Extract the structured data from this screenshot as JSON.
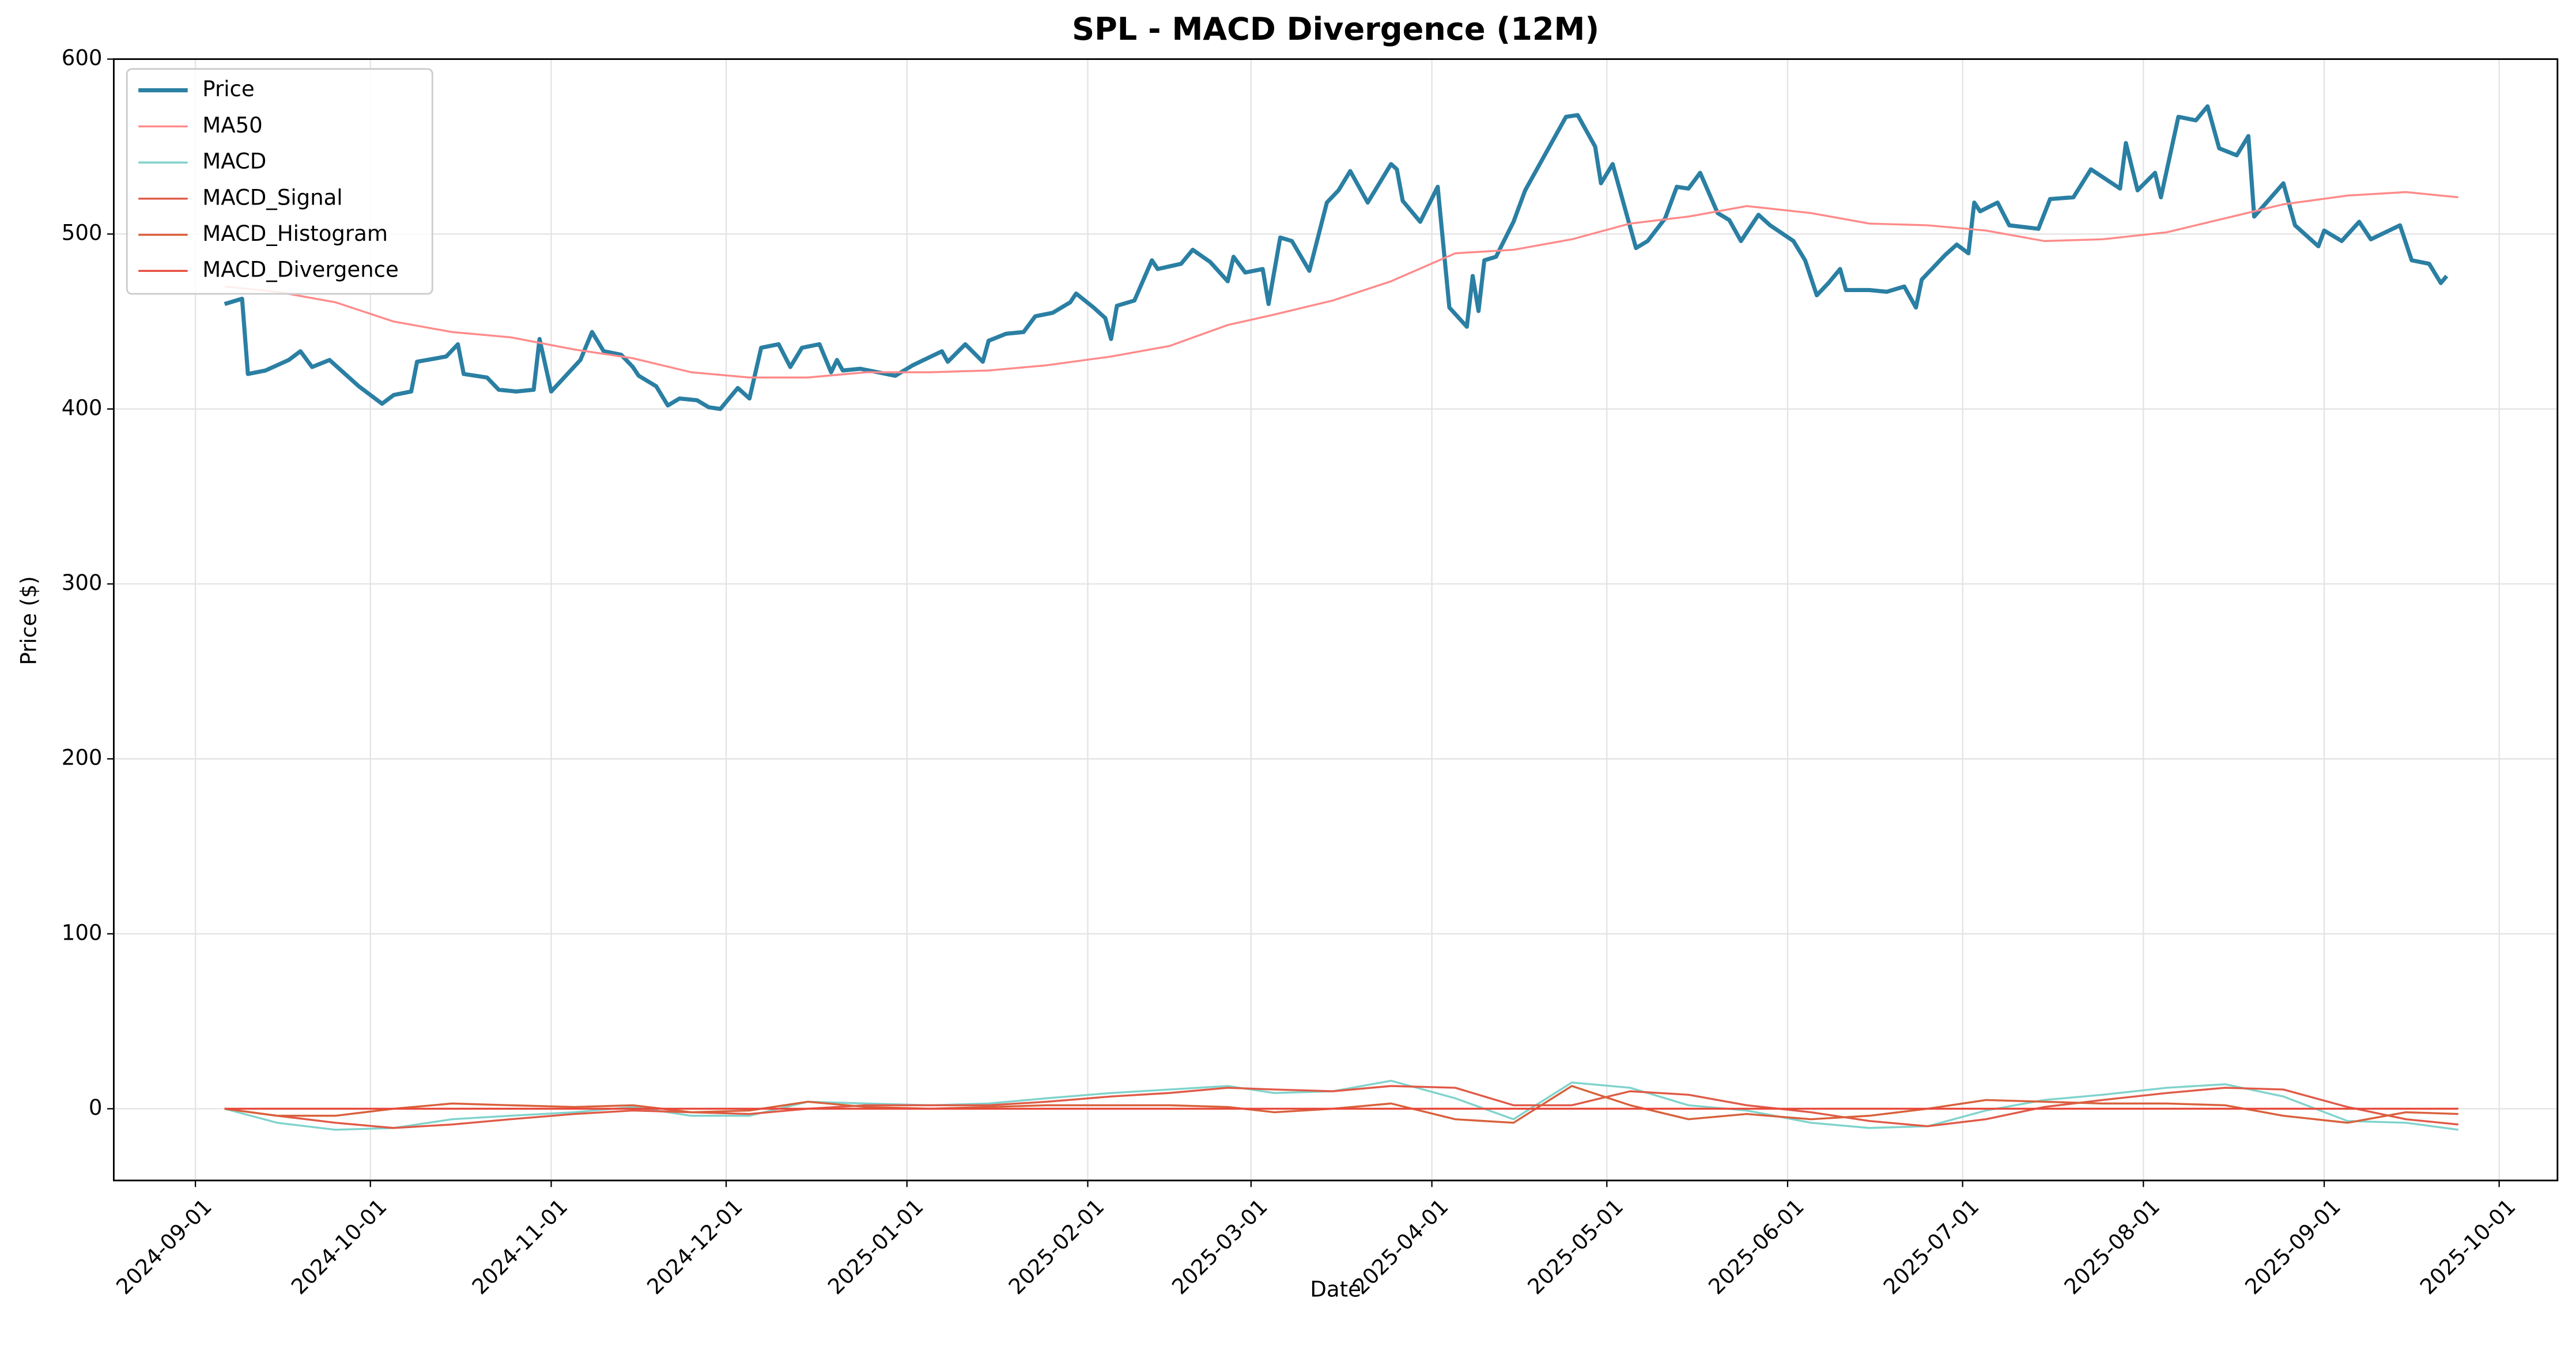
{
  "chart_data": {
    "type": "line",
    "title": "SPL - MACD Divergence (12M)",
    "x_label": "Date",
    "y_label": "Price ($)",
    "xlim": [
      "2024-08-18",
      "2025-10-11"
    ],
    "ylim": [
      -41,
      600
    ],
    "xticks": [
      "2024-09-01",
      "2024-10-01",
      "2024-11-01",
      "2024-12-01",
      "2025-01-01",
      "2025-02-01",
      "2025-03-01",
      "2025-04-01",
      "2025-05-01",
      "2025-06-01",
      "2025-07-01",
      "2025-08-01",
      "2025-09-01",
      "2025-10-01"
    ],
    "yticks": [
      0,
      100,
      200,
      300,
      400,
      500,
      600
    ],
    "grid": true,
    "legend": "upper left",
    "x": [
      "2024-09-06",
      "2024-09-15",
      "2024-09-25",
      "2024-10-05",
      "2024-10-15",
      "2024-10-25",
      "2024-11-05",
      "2024-11-15",
      "2024-11-25",
      "2024-12-05",
      "2024-12-15",
      "2024-12-25",
      "2025-01-05",
      "2025-01-15",
      "2025-01-25",
      "2025-02-05",
      "2025-02-15",
      "2025-02-25",
      "2025-03-05",
      "2025-03-15",
      "2025-03-25",
      "2025-04-05",
      "2025-04-15",
      "2025-04-25",
      "2025-05-05",
      "2025-05-15",
      "2025-05-25",
      "2025-06-05",
      "2025-06-15",
      "2025-06-25",
      "2025-07-05",
      "2025-07-15",
      "2025-07-25",
      "2025-08-05",
      "2025-08-15",
      "2025-08-25",
      "2025-09-05",
      "2025-09-15",
      "2025-09-24"
    ],
    "series": [
      {
        "name": "Price",
        "color": "#2a7fa3",
        "width": 2.5,
        "x": [
          "2024-09-06",
          "2024-09-09",
          "2024-09-10",
          "2024-09-13",
          "2024-09-17",
          "2024-09-19",
          "2024-09-21",
          "2024-09-24",
          "2024-09-26",
          "2024-09-29",
          "2024-10-03",
          "2024-10-05",
          "2024-10-08",
          "2024-10-09",
          "2024-10-14",
          "2024-10-16",
          "2024-10-17",
          "2024-10-21",
          "2024-10-23",
          "2024-10-26",
          "2024-10-29",
          "2024-10-30",
          "2024-11-01",
          "2024-11-06",
          "2024-11-08",
          "2024-11-10",
          "2024-11-13",
          "2024-11-15",
          "2024-11-16",
          "2024-11-19",
          "2024-11-21",
          "2024-11-23",
          "2024-11-26",
          "2024-11-28",
          "2024-11-30",
          "2024-12-03",
          "2024-12-05",
          "2024-12-07",
          "2024-12-10",
          "2024-12-12",
          "2024-12-14",
          "2024-12-17",
          "2024-12-19",
          "2024-12-20",
          "2024-12-21",
          "2024-12-24",
          "2024-12-30",
          "2025-01-02",
          "2025-01-07",
          "2025-01-08",
          "2025-01-11",
          "2025-01-14",
          "2025-01-15",
          "2025-01-18",
          "2025-01-21",
          "2025-01-23",
          "2025-01-26",
          "2025-01-29",
          "2025-01-30",
          "2025-02-02",
          "2025-02-04",
          "2025-02-05",
          "2025-02-06",
          "2025-02-09",
          "2025-02-12",
          "2025-02-13",
          "2025-02-17",
          "2025-02-19",
          "2025-02-22",
          "2025-02-25",
          "2025-02-26",
          "2025-02-28",
          "2025-03-03",
          "2025-03-04",
          "2025-03-06",
          "2025-03-08",
          "2025-03-11",
          "2025-03-14",
          "2025-03-16",
          "2025-03-18",
          "2025-03-21",
          "2025-03-23",
          "2025-03-25",
          "2025-03-26",
          "2025-03-27",
          "2025-03-30",
          "2025-04-02",
          "2025-04-04",
          "2025-04-07",
          "2025-04-08",
          "2025-04-09",
          "2025-04-10",
          "2025-04-12",
          "2025-04-15",
          "2025-04-17",
          "2025-04-21",
          "2025-04-24",
          "2025-04-26",
          "2025-04-29",
          "2025-04-30",
          "2025-05-02",
          "2025-05-06",
          "2025-05-08",
          "2025-05-11",
          "2025-05-13",
          "2025-05-15",
          "2025-05-17",
          "2025-05-20",
          "2025-05-22",
          "2025-05-24",
          "2025-05-27",
          "2025-05-29",
          "2025-06-02",
          "2025-06-04",
          "2025-06-06",
          "2025-06-08",
          "2025-06-10",
          "2025-06-11",
          "2025-06-15",
          "2025-06-18",
          "2025-06-21",
          "2025-06-23",
          "2025-06-24",
          "2025-06-28",
          "2025-06-30",
          "2025-07-02",
          "2025-07-03",
          "2025-07-04",
          "2025-07-07",
          "2025-07-09",
          "2025-07-14",
          "2025-07-16",
          "2025-07-20",
          "2025-07-23",
          "2025-07-28",
          "2025-07-29",
          "2025-07-31",
          "2025-08-03",
          "2025-08-04",
          "2025-08-07",
          "2025-08-10",
          "2025-08-12",
          "2025-08-14",
          "2025-08-17",
          "2025-08-19",
          "2025-08-20",
          "2025-08-25",
          "2025-08-27",
          "2025-08-31",
          "2025-09-01",
          "2025-09-04",
          "2025-09-07",
          "2025-09-09",
          "2025-09-14",
          "2025-09-16",
          "2025-09-19",
          "2025-09-21",
          "2025-09-22"
        ],
        "values": [
          460,
          463,
          420,
          422,
          428,
          433,
          424,
          428,
          422,
          413,
          403,
          408,
          410,
          427,
          430,
          437,
          420,
          418,
          411,
          410,
          411,
          440,
          410,
          428,
          444,
          433,
          431,
          424,
          419,
          413,
          402,
          406,
          405,
          401,
          400,
          412,
          406,
          435,
          437,
          424,
          435,
          437,
          421,
          428,
          422,
          423,
          419,
          425,
          433,
          427,
          437,
          427,
          439,
          443,
          444,
          453,
          455,
          461,
          466,
          458,
          452,
          440,
          459,
          462,
          485,
          480,
          483,
          491,
          484,
          473,
          487,
          478,
          480,
          460,
          498,
          496,
          479,
          518,
          525,
          536,
          518,
          529,
          540,
          537,
          519,
          507,
          527,
          458,
          447,
          476,
          456,
          485,
          487,
          507,
          525,
          549,
          567,
          568,
          550,
          529,
          540,
          492,
          496,
          509,
          527,
          526,
          535,
          512,
          508,
          496,
          511,
          505,
          496,
          485,
          465,
          472,
          480,
          468,
          468,
          467,
          470,
          458,
          474,
          488,
          494,
          489,
          518,
          513,
          518,
          505,
          503,
          520,
          521,
          537,
          526,
          552,
          525,
          535,
          521,
          567,
          565,
          573,
          549,
          545,
          556,
          510,
          529,
          505,
          493,
          502,
          496,
          507,
          497,
          505,
          485,
          483,
          472,
          476
        ]
      },
      {
        "name": "MA50",
        "color": "#ff8a8a",
        "width": 1.2,
        "values": [
          470,
          467,
          461,
          450,
          444,
          441,
          434,
          429,
          421,
          418,
          418,
          421,
          421,
          422,
          425,
          430,
          436,
          448,
          454,
          462,
          473,
          489,
          491,
          497,
          506,
          510,
          516,
          512,
          506,
          505,
          502,
          496,
          497,
          501,
          509,
          517,
          522,
          524,
          521
        ]
      },
      {
        "name": "MACD",
        "color": "#7fd3cc",
        "width": 1.2,
        "values": [
          0,
          -8,
          -12,
          -11,
          -6,
          -4,
          -2,
          1,
          -4,
          -4,
          4,
          3,
          2,
          3,
          6,
          9,
          11,
          13,
          9,
          10,
          16,
          6,
          -6,
          15,
          12,
          2,
          -1,
          -8,
          -11,
          -10,
          -1,
          5,
          8,
          12,
          14,
          7,
          -7,
          -8,
          -12
        ]
      },
      {
        "name": "MACD_Signal",
        "color": "#e05a47",
        "width": 1.2,
        "values": [
          0,
          -4,
          -8,
          -11,
          -9,
          -6,
          -3,
          -1,
          -2,
          -3,
          0,
          2,
          2,
          2,
          4,
          7,
          9,
          12,
          11,
          10,
          13,
          12,
          2,
          2,
          10,
          8,
          2,
          -2,
          -7,
          -10,
          -6,
          1,
          5,
          9,
          12,
          11,
          1,
          -6,
          -9
        ]
      },
      {
        "name": "MACD_Histogram",
        "color": "#d9603b",
        "width": 1.2,
        "values": [
          0,
          -4,
          -4,
          0,
          3,
          2,
          1,
          2,
          -2,
          -1,
          4,
          1,
          0,
          1,
          2,
          2,
          2,
          1,
          -2,
          0,
          3,
          -6,
          -8,
          13,
          2,
          -6,
          -3,
          -6,
          -4,
          0,
          5,
          4,
          3,
          3,
          2,
          -4,
          -8,
          -2,
          -3
        ]
      },
      {
        "name": "MACD_Divergence",
        "color": "#e8483a",
        "width": 1.2,
        "values": [
          0,
          0,
          0,
          0,
          0,
          0,
          0,
          0,
          0,
          0,
          0,
          0,
          0,
          0,
          0,
          0,
          0,
          0,
          0,
          0,
          0,
          0,
          0,
          0,
          0,
          0,
          0,
          0,
          0,
          0,
          0,
          0,
          0,
          0,
          0,
          0,
          0,
          0,
          0
        ]
      }
    ]
  }
}
